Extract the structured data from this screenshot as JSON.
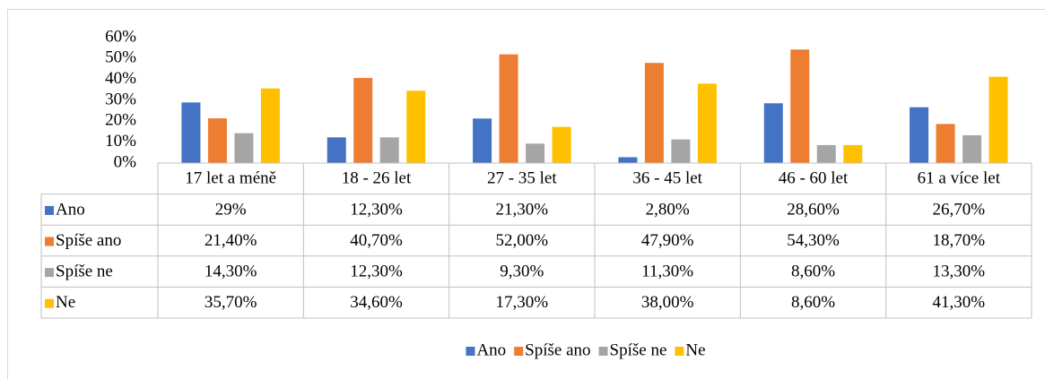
{
  "chart_data": {
    "type": "bar",
    "categories": [
      "17 let a méně",
      "18 - 26 let",
      "27 - 35 let",
      "36 - 45 let",
      "46 - 60 let",
      "61 a více let"
    ],
    "series": [
      {
        "name": "Ano",
        "color": "#4472c4",
        "values": [
          29,
          12.3,
          21.3,
          2.8,
          28.6,
          26.7
        ],
        "value_labels": [
          "29%",
          "12,30%",
          "21,30%",
          "2,80%",
          "28,60%",
          "26,70%"
        ]
      },
      {
        "name": "Spíše ano",
        "color": "#ed7d31",
        "values": [
          21.4,
          40.7,
          52,
          47.9,
          54.3,
          18.7
        ],
        "value_labels": [
          "21,40%",
          "40,70%",
          "52,00%",
          "47,90%",
          "54,30%",
          "18,70%"
        ]
      },
      {
        "name": "Spíše ne",
        "color": "#a5a5a5",
        "values": [
          14.3,
          12.3,
          9.3,
          11.3,
          8.6,
          13.3
        ],
        "value_labels": [
          "14,30%",
          "12,30%",
          "9,30%",
          "11,30%",
          "8,60%",
          "13,30%"
        ]
      },
      {
        "name": "Ne",
        "color": "#ffc000",
        "values": [
          35.7,
          34.6,
          17.3,
          38,
          8.6,
          41.3
        ],
        "value_labels": [
          "35,70%",
          "34,60%",
          "17,30%",
          "38,00%",
          "8,60%",
          "41,30%"
        ]
      }
    ],
    "ylim": [
      0,
      60
    ],
    "yticks": [
      {
        "value": 0,
        "label": "0%"
      },
      {
        "value": 10,
        "label": "10%"
      },
      {
        "value": 20,
        "label": "20%"
      },
      {
        "value": 30,
        "label": "30%"
      },
      {
        "value": 40,
        "label": "40%"
      },
      {
        "value": 50,
        "label": "50%"
      },
      {
        "value": 60,
        "label": "60%"
      }
    ],
    "grid": false,
    "legend": "bottom"
  }
}
